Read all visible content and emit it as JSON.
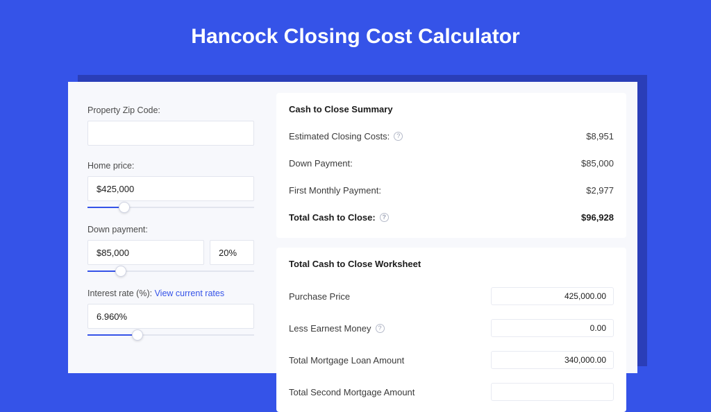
{
  "page": {
    "title": "Hancock Closing Cost Calculator",
    "bg_color": "#3553e8",
    "title_color": "#ffffff",
    "title_fontsize": 30
  },
  "form": {
    "zip": {
      "label": "Property Zip Code:",
      "value": ""
    },
    "home_price": {
      "label": "Home price:",
      "value": "$425,000",
      "slider_percent": 22
    },
    "down_payment": {
      "label": "Down payment:",
      "value": "$85,000",
      "percent": "20%",
      "slider_percent": 20
    },
    "interest_rate": {
      "label_prefix": "Interest rate (%): ",
      "link_text": "View current rates",
      "value": "6.960%",
      "slider_percent": 30
    }
  },
  "summary": {
    "title": "Cash to Close Summary",
    "rows": [
      {
        "label": "Estimated Closing Costs:",
        "help": true,
        "value": "$8,951",
        "bold": false
      },
      {
        "label": "Down Payment:",
        "help": false,
        "value": "$85,000",
        "bold": false
      },
      {
        "label": "First Monthly Payment:",
        "help": false,
        "value": "$2,977",
        "bold": false
      },
      {
        "label": "Total Cash to Close:",
        "help": true,
        "value": "$96,928",
        "bold": true
      }
    ]
  },
  "worksheet": {
    "title": "Total Cash to Close Worksheet",
    "rows": [
      {
        "label": "Purchase Price",
        "help": false,
        "value": "425,000.00"
      },
      {
        "label": "Less Earnest Money",
        "help": true,
        "value": "0.00"
      },
      {
        "label": "Total Mortgage Loan Amount",
        "help": false,
        "value": "340,000.00"
      },
      {
        "label": "Total Second Mortgage Amount",
        "help": false,
        "value": ""
      }
    ]
  },
  "style": {
    "panel_bg": "#ffffff",
    "card_bg": "#f7f8fc",
    "input_border": "#e2e5ee",
    "accent": "#3553e8",
    "text": "#1a1a1a",
    "muted": "#4a4a4a"
  }
}
